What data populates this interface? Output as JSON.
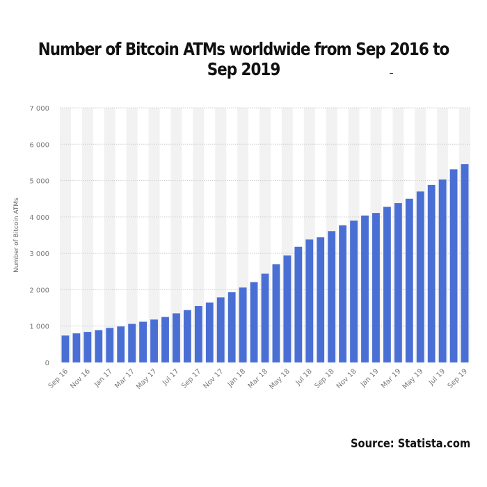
{
  "title": "Number of Bitcoin ATMs worldwide from Sep 2016 to Sep 2019",
  "source": "Source: Statista.com",
  "colors": {
    "bar": "#4a6fd4",
    "grid": "#cfcfcf",
    "band": "#f2f2f2",
    "tick": "#777777"
  },
  "chart_data": {
    "type": "bar",
    "ylabel": "Number of Bitcoin ATMs",
    "xlabel": "",
    "ylim": [
      0,
      7000
    ],
    "yticks": [
      "0",
      "1 000",
      "2 000",
      "3 000",
      "4 000",
      "5 000",
      "6 000",
      "7 000"
    ],
    "grid": true,
    "categories": [
      "Sep 16",
      "Oct 16",
      "Nov 16",
      "Dec 16",
      "Jan 17",
      "Feb 17",
      "Mar 17",
      "Apr 17",
      "May 17",
      "Jun 17",
      "Jul 17",
      "Aug 17",
      "Sep 17",
      "Oct 17",
      "Nov 17",
      "Dec 17",
      "Jan 18",
      "Feb 18",
      "Mar 18",
      "Apr 18",
      "May 18",
      "Jun 18",
      "Jul 18",
      "Aug 18",
      "Sep 18",
      "Oct 18",
      "Nov 18",
      "Dec 18",
      "Jan 19",
      "Feb 19",
      "Mar 19",
      "Apr 19",
      "May 19",
      "Jun 19",
      "Jul 19",
      "Aug 19",
      "Sep 19"
    ],
    "shown_labels": [
      "Sep 16",
      "Nov 16",
      "Jan 17",
      "Mar 17",
      "May 17",
      "Jul 17",
      "Sep 17",
      "Nov 17",
      "Jan 18",
      "Mar 18",
      "May 18",
      "Jul 18",
      "Sep 18",
      "Nov 18",
      "Jan 19",
      "Mar 19",
      "May 19",
      "Jul 19",
      "Sep 19"
    ],
    "values": [
      740,
      800,
      840,
      890,
      950,
      990,
      1060,
      1120,
      1180,
      1250,
      1350,
      1440,
      1550,
      1650,
      1790,
      1930,
      2060,
      2210,
      2440,
      2700,
      2940,
      3180,
      3380,
      3440,
      3610,
      3770,
      3900,
      4040,
      4110,
      4280,
      4380,
      4500,
      4700,
      4880,
      5030,
      5310,
      5450
    ]
  }
}
